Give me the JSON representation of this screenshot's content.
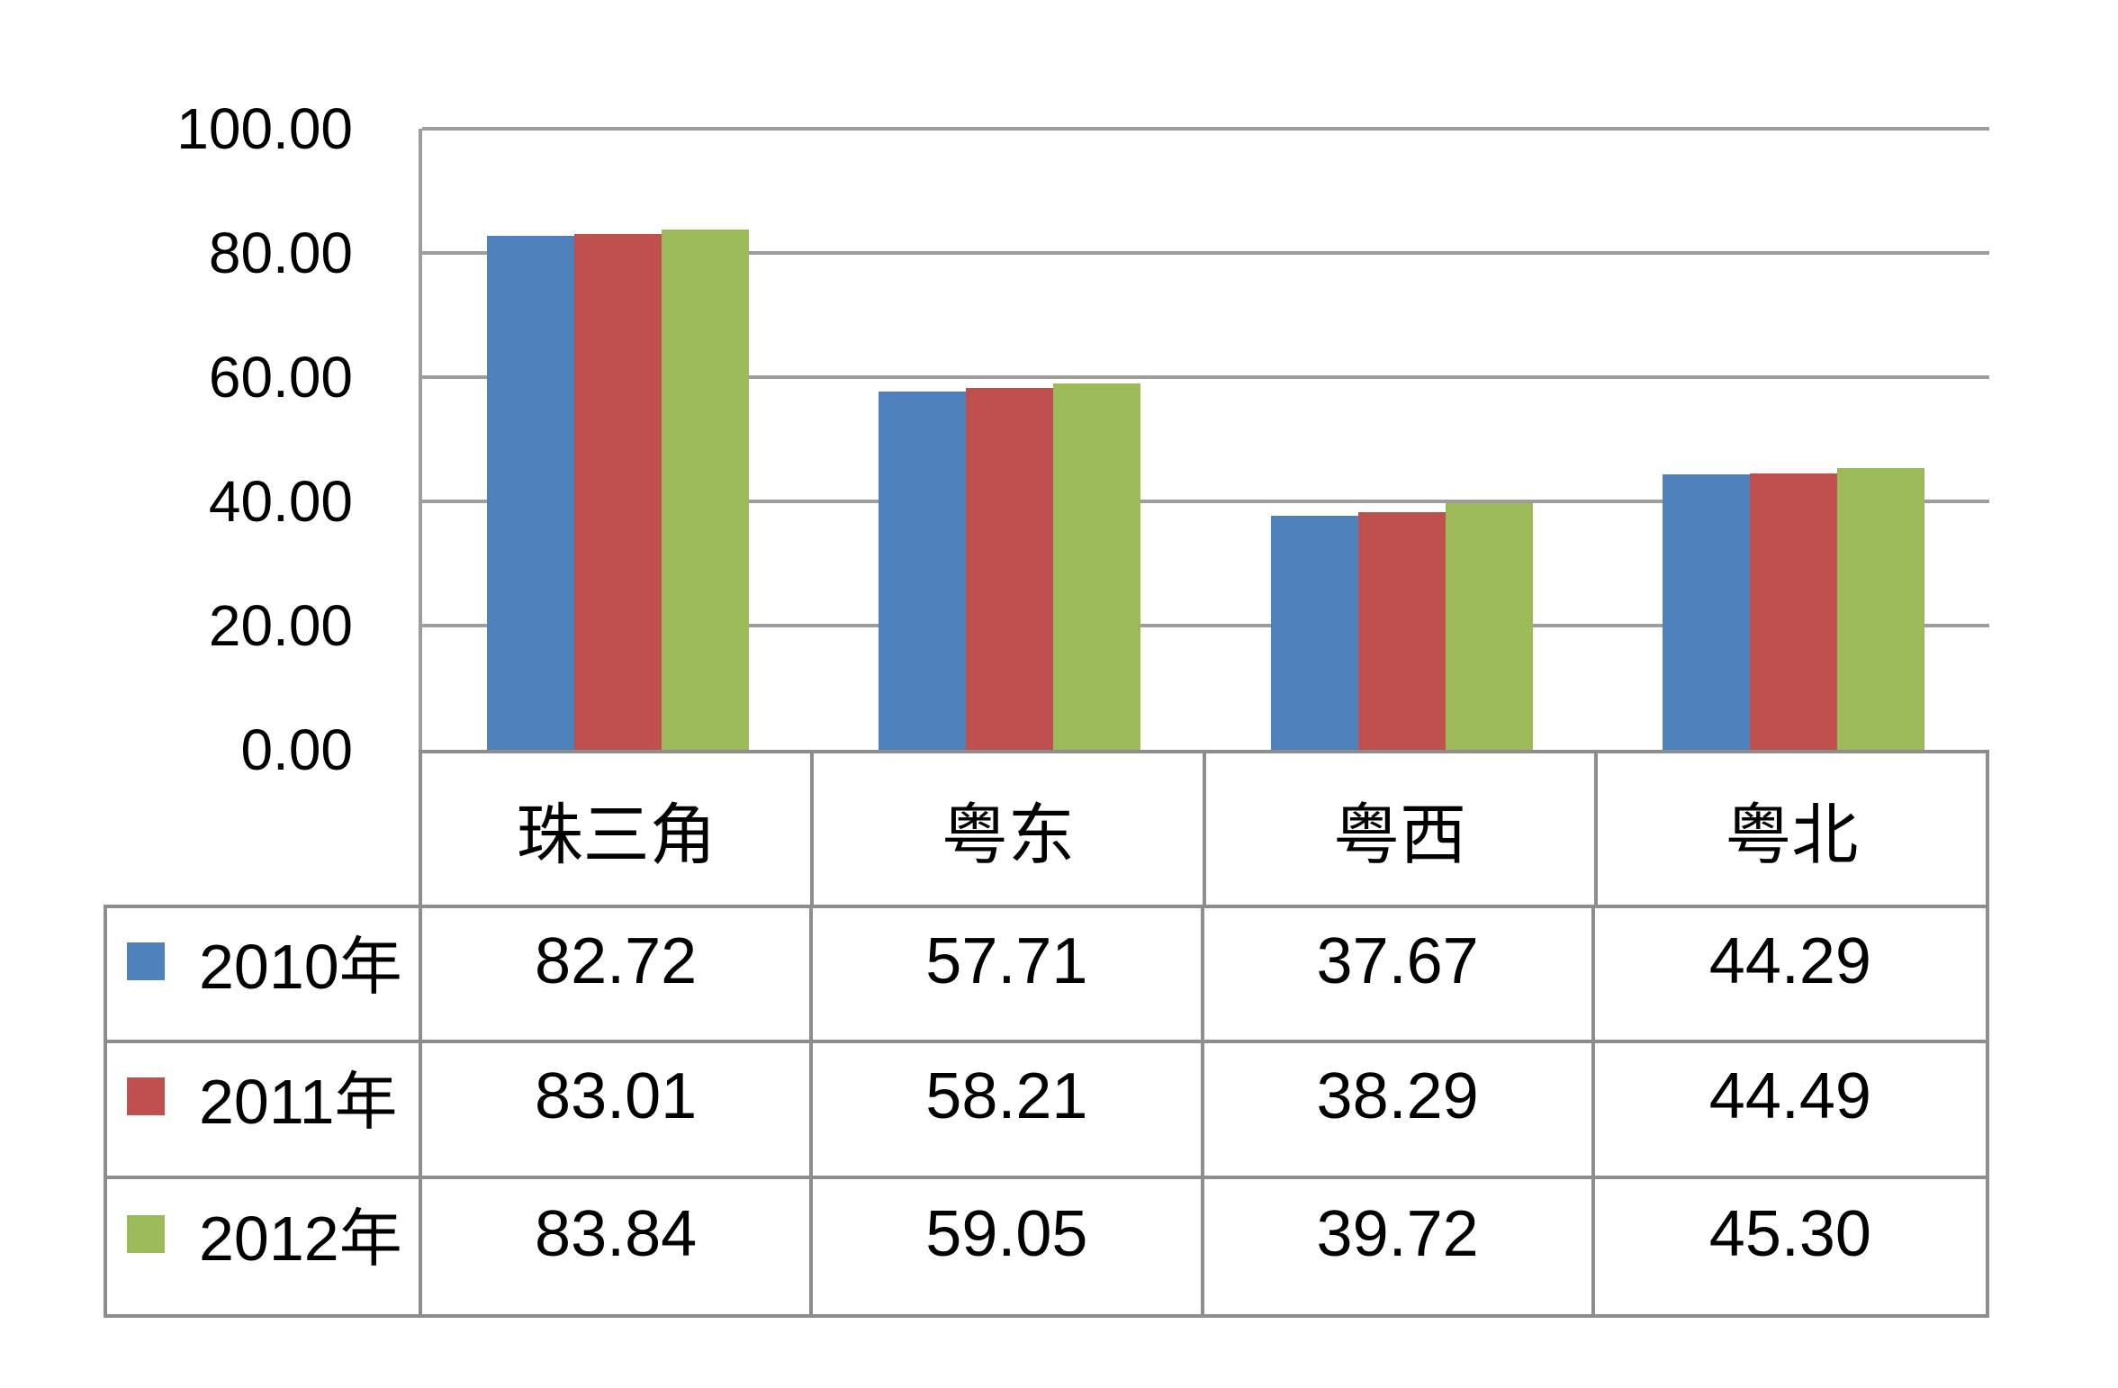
{
  "colors": {
    "background": "#ffffff",
    "grid_line": "#9d9d9d",
    "table_border": "#8d8d8d",
    "series_blue": "#4F81BD",
    "series_red": "#C0504D",
    "series_green": "#9BBB59"
  },
  "chart_data": {
    "type": "bar",
    "title": "",
    "xlabel": "",
    "ylabel": "",
    "categories": [
      "珠三角",
      "粤东",
      "粤西",
      "粤北"
    ],
    "series": [
      {
        "name": "2010年",
        "color": "#4F81BD",
        "values": [
          82.72,
          57.71,
          37.67,
          44.29
        ]
      },
      {
        "name": "2011年",
        "color": "#C0504D",
        "values": [
          83.01,
          58.21,
          38.29,
          44.49
        ]
      },
      {
        "name": "2012年",
        "color": "#9BBB59",
        "values": [
          83.84,
          59.05,
          39.72,
          45.3
        ]
      }
    ],
    "ylim": [
      0,
      100
    ],
    "ytick_step": 20,
    "ytick_labels": [
      "100.00",
      "80.00",
      "60.00",
      "40.00",
      "20.00",
      "0.00"
    ],
    "value_decimals": 2,
    "grid": true,
    "legend_position": "table-rows-left"
  }
}
